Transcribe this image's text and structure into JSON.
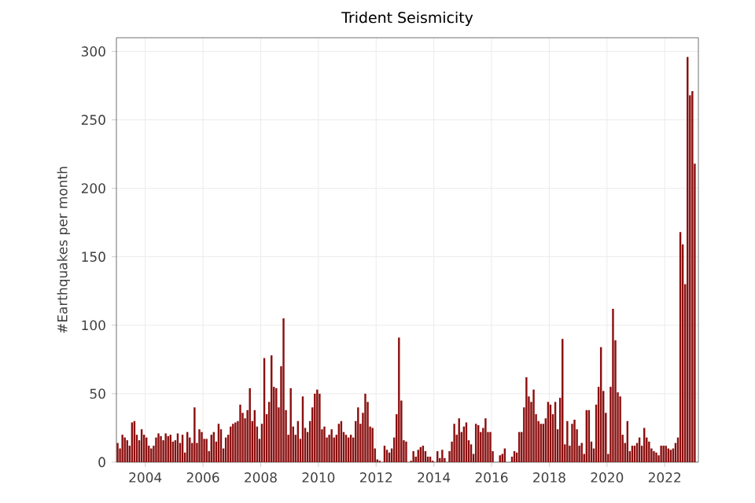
{
  "chart_data": {
    "type": "bar",
    "title": "Trident Seismicity",
    "ylabel": "#Earthquakes per month",
    "color": "#8b0f0f",
    "x": [
      "2003-01",
      "2003-02",
      "2003-03",
      "2003-04",
      "2003-05",
      "2003-06",
      "2003-07",
      "2003-08",
      "2003-09",
      "2003-10",
      "2003-11",
      "2003-12",
      "2004-01",
      "2004-02",
      "2004-03",
      "2004-04",
      "2004-05",
      "2004-06",
      "2004-07",
      "2004-08",
      "2004-09",
      "2004-10",
      "2004-11",
      "2004-12",
      "2005-01",
      "2005-02",
      "2005-03",
      "2005-04",
      "2005-05",
      "2005-06",
      "2005-07",
      "2005-08",
      "2005-09",
      "2005-10",
      "2005-11",
      "2005-12",
      "2006-01",
      "2006-02",
      "2006-03",
      "2006-04",
      "2006-05",
      "2006-06",
      "2006-07",
      "2006-08",
      "2006-09",
      "2006-10",
      "2006-11",
      "2006-12",
      "2007-01",
      "2007-02",
      "2007-03",
      "2007-04",
      "2007-05",
      "2007-06",
      "2007-07",
      "2007-08",
      "2007-09",
      "2007-10",
      "2007-11",
      "2007-12",
      "2008-01",
      "2008-02",
      "2008-03",
      "2008-04",
      "2008-05",
      "2008-06",
      "2008-07",
      "2008-08",
      "2008-09",
      "2008-10",
      "2008-11",
      "2008-12",
      "2009-01",
      "2009-02",
      "2009-03",
      "2009-04",
      "2009-05",
      "2009-06",
      "2009-07",
      "2009-08",
      "2009-09",
      "2009-10",
      "2009-11",
      "2009-12",
      "2010-01",
      "2010-02",
      "2010-03",
      "2010-04",
      "2010-05",
      "2010-06",
      "2010-07",
      "2010-08",
      "2010-09",
      "2010-10",
      "2010-11",
      "2010-12",
      "2011-01",
      "2011-02",
      "2011-03",
      "2011-04",
      "2011-05",
      "2011-06",
      "2011-07",
      "2011-08",
      "2011-09",
      "2011-10",
      "2011-11",
      "2011-12",
      "2012-01",
      "2012-02",
      "2012-03",
      "2012-04",
      "2012-05",
      "2012-06",
      "2012-07",
      "2012-08",
      "2012-09",
      "2012-10",
      "2012-11",
      "2012-12",
      "2013-01",
      "2013-02",
      "2013-03",
      "2013-04",
      "2013-05",
      "2013-06",
      "2013-07",
      "2013-08",
      "2013-09",
      "2013-10",
      "2013-11",
      "2013-12",
      "2014-01",
      "2014-02",
      "2014-03",
      "2014-04",
      "2014-05",
      "2014-06",
      "2014-07",
      "2014-08",
      "2014-09",
      "2014-10",
      "2014-11",
      "2014-12",
      "2015-01",
      "2015-02",
      "2015-03",
      "2015-04",
      "2015-05",
      "2015-06",
      "2015-07",
      "2015-08",
      "2015-09",
      "2015-10",
      "2015-11",
      "2015-12",
      "2016-01",
      "2016-02",
      "2016-03",
      "2016-04",
      "2016-05",
      "2016-06",
      "2016-07",
      "2016-08",
      "2016-09",
      "2016-10",
      "2016-11",
      "2016-12",
      "2017-01",
      "2017-02",
      "2017-03",
      "2017-04",
      "2017-05",
      "2017-06",
      "2017-07",
      "2017-08",
      "2017-09",
      "2017-10",
      "2017-11",
      "2017-12",
      "2018-01",
      "2018-02",
      "2018-03",
      "2018-04",
      "2018-05",
      "2018-06",
      "2018-07",
      "2018-08",
      "2018-09",
      "2018-10",
      "2018-11",
      "2018-12",
      "2019-01",
      "2019-02",
      "2019-03",
      "2019-04",
      "2019-05",
      "2019-06",
      "2019-07",
      "2019-08",
      "2019-09",
      "2019-10",
      "2019-11",
      "2019-12",
      "2020-01",
      "2020-02",
      "2020-03",
      "2020-04",
      "2020-05",
      "2020-06",
      "2020-07",
      "2020-08",
      "2020-09",
      "2020-10",
      "2020-11",
      "2020-12",
      "2021-01",
      "2021-02",
      "2021-03",
      "2021-04",
      "2021-05",
      "2021-06",
      "2021-07",
      "2021-08",
      "2021-09",
      "2021-10",
      "2021-11",
      "2021-12",
      "2022-01",
      "2022-02",
      "2022-03",
      "2022-04",
      "2022-05",
      "2022-06",
      "2022-07",
      "2022-08",
      "2022-09",
      "2022-10",
      "2022-11",
      "2022-12",
      "2023-01"
    ],
    "values": [
      14,
      10,
      20,
      18,
      16,
      12,
      29,
      30,
      20,
      16,
      24,
      20,
      18,
      12,
      10,
      12,
      18,
      21,
      19,
      16,
      21,
      19,
      20,
      15,
      16,
      21,
      14,
      20,
      7,
      22,
      18,
      14,
      40,
      14,
      24,
      22,
      17,
      17,
      8,
      20,
      22,
      15,
      28,
      24,
      10,
      18,
      20,
      26,
      28,
      29,
      30,
      42,
      36,
      32,
      38,
      54,
      30,
      38,
      26,
      17,
      28,
      76,
      35,
      44,
      78,
      55,
      54,
      40,
      70,
      105,
      38,
      20,
      54,
      26,
      20,
      30,
      17,
      48,
      25,
      22,
      30,
      40,
      50,
      53,
      50,
      24,
      26,
      18,
      20,
      24,
      18,
      20,
      28,
      30,
      22,
      20,
      18,
      20,
      18,
      30,
      40,
      28,
      36,
      50,
      44,
      26,
      25,
      10,
      2,
      1,
      0,
      12,
      9,
      7,
      10,
      18,
      35,
      91,
      45,
      16,
      15,
      0,
      1,
      8,
      4,
      9,
      11,
      12,
      8,
      4,
      4,
      1,
      0,
      8,
      3,
      9,
      3,
      0,
      8,
      15,
      28,
      20,
      32,
      22,
      26,
      29,
      16,
      13,
      6,
      28,
      27,
      22,
      25,
      32,
      22,
      22,
      8,
      0,
      0,
      5,
      6,
      10,
      0,
      0,
      4,
      8,
      7,
      22,
      22,
      40,
      62,
      48,
      44,
      53,
      35,
      30,
      28,
      28,
      32,
      44,
      42,
      35,
      44,
      24,
      47,
      90,
      13,
      30,
      12,
      28,
      31,
      24,
      12,
      14,
      6,
      38,
      38,
      15,
      10,
      42,
      55,
      84,
      52,
      36,
      6,
      55,
      112,
      89,
      51,
      48,
      20,
      14,
      30,
      8,
      12,
      12,
      14,
      18,
      12,
      25,
      18,
      15,
      10,
      8,
      7,
      5,
      12,
      12,
      12,
      10,
      9,
      10,
      14,
      18,
      168,
      159,
      130,
      296,
      268,
      271,
      218
    ],
    "xlim": [
      "2003-01",
      "2023-03"
    ],
    "ylim": [
      0,
      310
    ],
    "xticks": [
      "2004",
      "2006",
      "2008",
      "2010",
      "2012",
      "2014",
      "2016",
      "2018",
      "2020",
      "2022"
    ],
    "yticks": [
      0,
      50,
      100,
      150,
      200,
      250,
      300
    ],
    "grid": true
  }
}
